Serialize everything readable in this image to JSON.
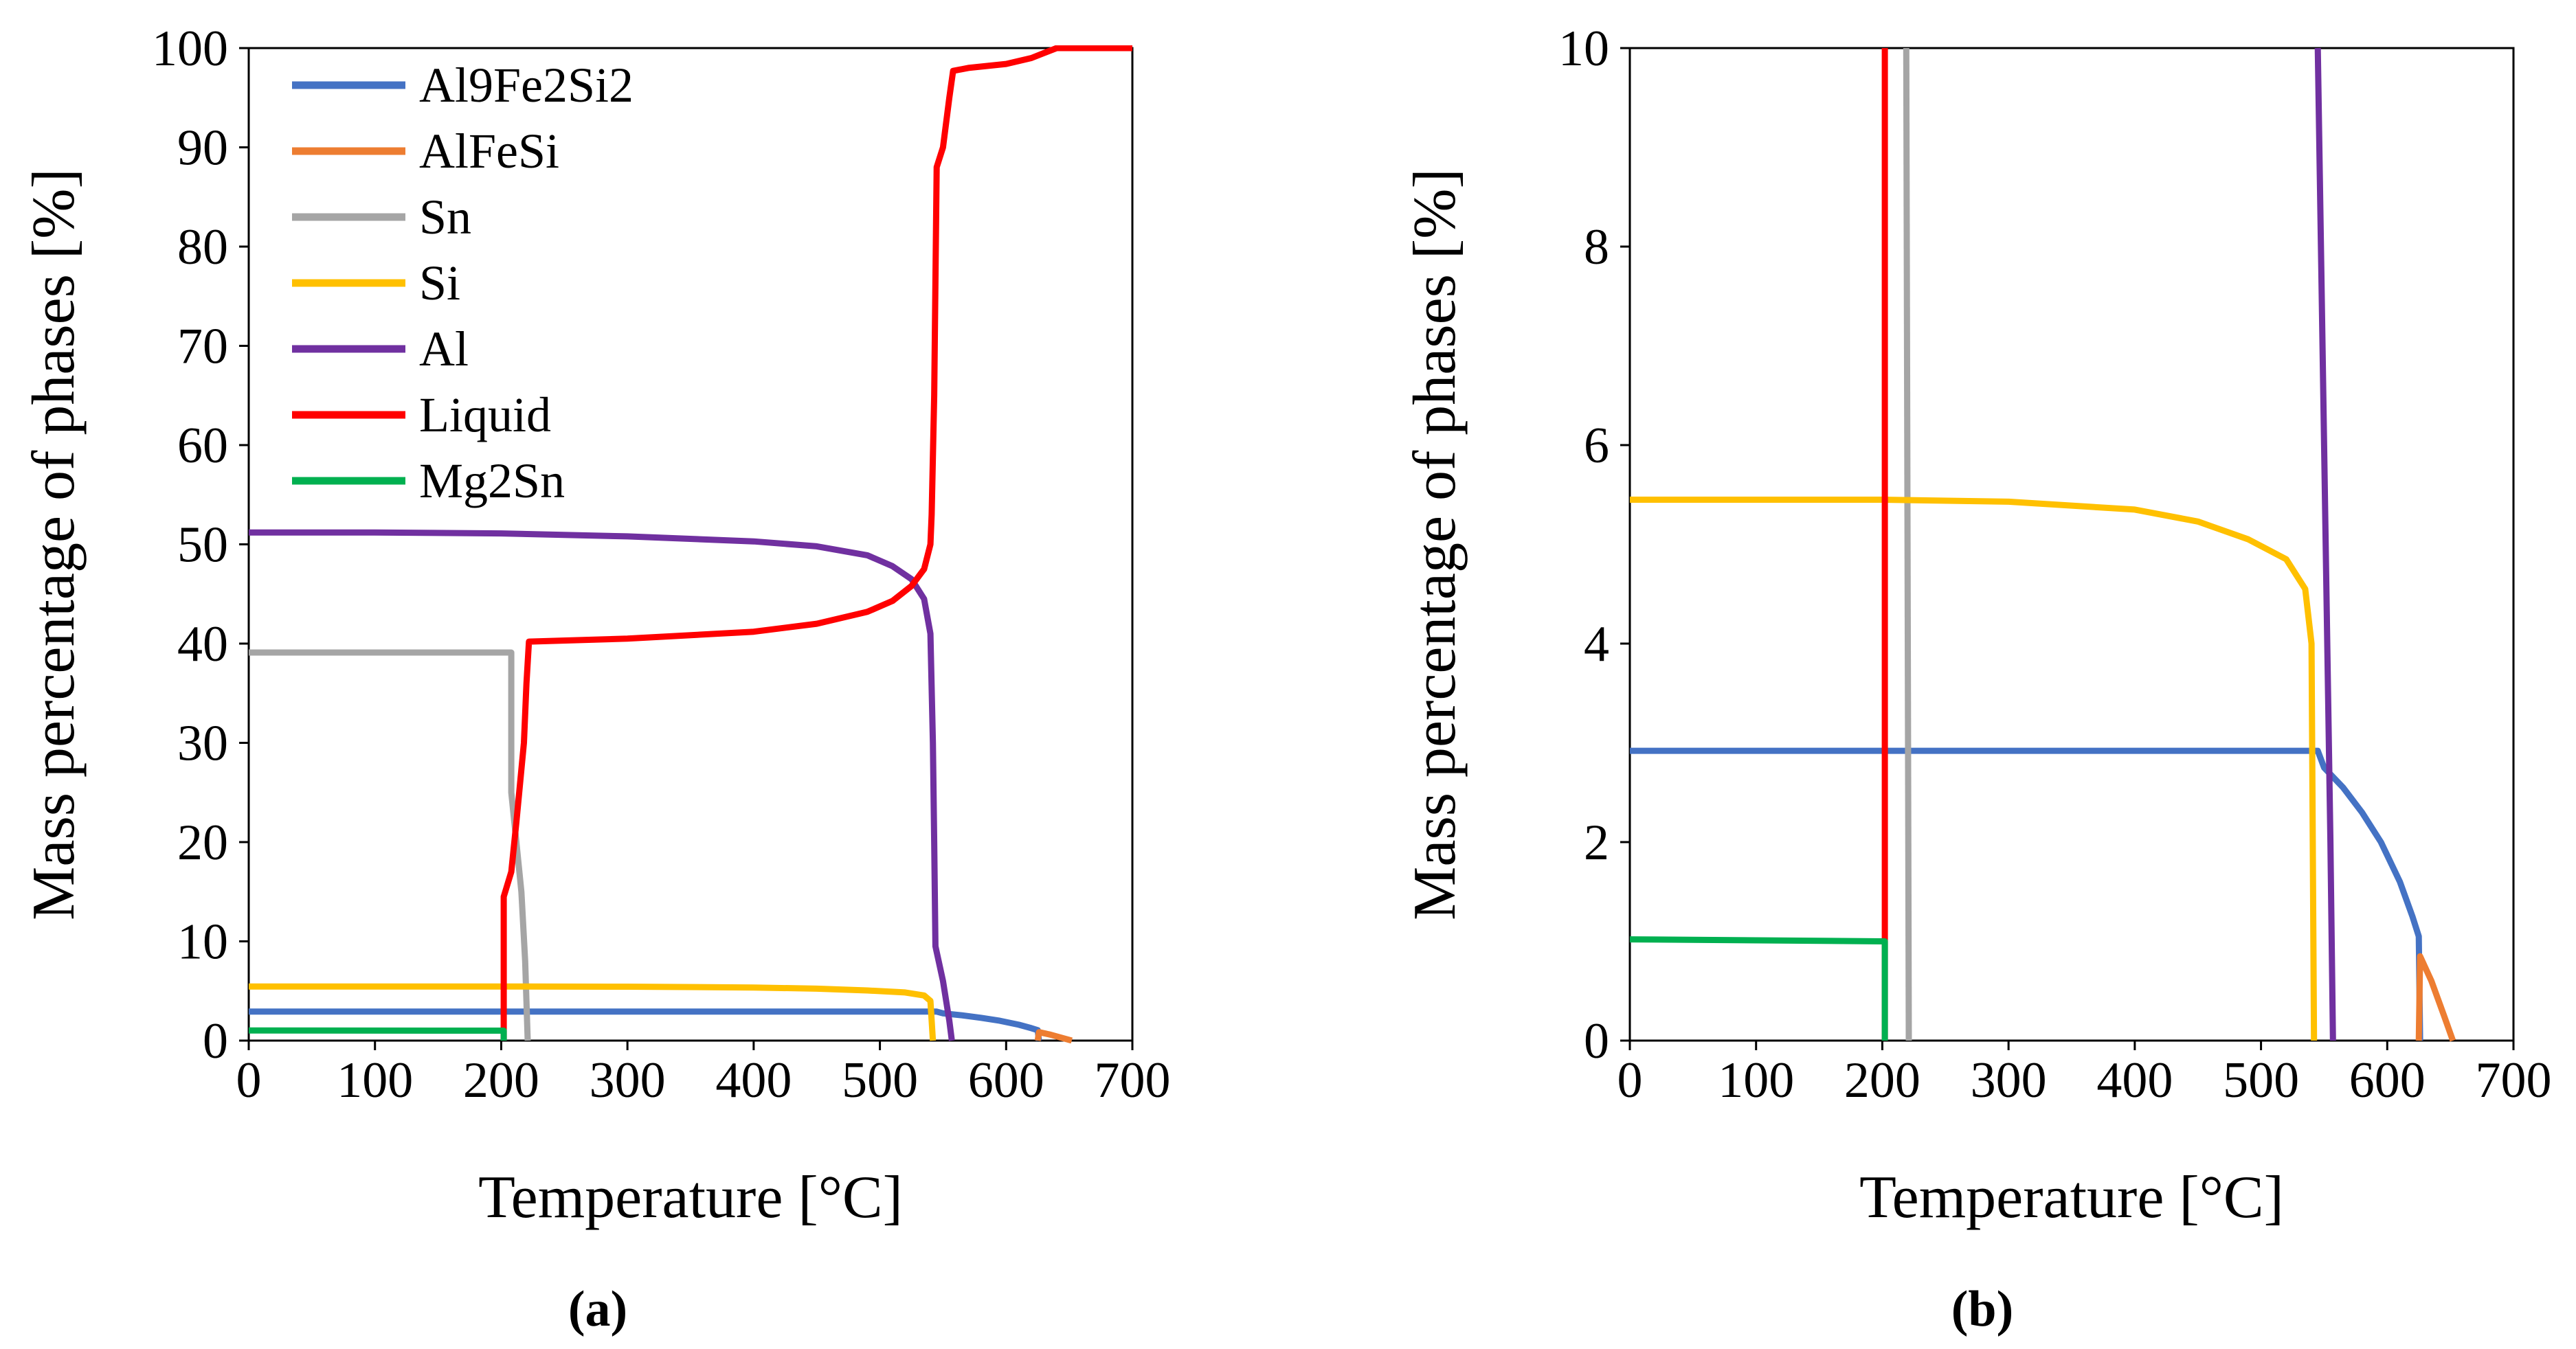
{
  "chart_data": [
    {
      "type": "line",
      "panel_label": "a",
      "panel_caption": "(a)",
      "xlabel": "Temperature [°C]",
      "ylabel": "Mass percentage of phases [%]",
      "xlim": [
        0,
        700
      ],
      "ylim": [
        0,
        100
      ],
      "xticks": [
        0,
        100,
        200,
        300,
        400,
        500,
        600,
        700
      ],
      "yticks": [
        0,
        10,
        20,
        30,
        40,
        50,
        60,
        70,
        80,
        90,
        100
      ],
      "xtick_labels": [
        "0",
        "100",
        "200",
        "300",
        "400",
        "500",
        "600",
        "700"
      ],
      "ytick_labels": [
        "0",
        "10",
        "20",
        "30",
        "40",
        "50",
        "60",
        "70",
        "80",
        "90",
        "100"
      ],
      "grid": false,
      "legend": "top-left",
      "series": [
        {
          "name": "Al9Fe2Si2",
          "color": "#4472C4",
          "points": [
            [
              0,
              2.92
            ],
            [
              500,
              2.92
            ],
            [
              545,
              2.92
            ],
            [
              550,
              2.75
            ],
            [
              565,
              2.55
            ],
            [
              580,
              2.3
            ],
            [
              595,
              2.0
            ],
            [
              610,
              1.6
            ],
            [
              620,
              1.25
            ],
            [
              625,
              1.05
            ],
            [
              626,
              0
            ]
          ]
        },
        {
          "name": "AlFeSi",
          "color": "#ED7D31",
          "points": [
            [
              625,
              0
            ],
            [
              626,
              0.85
            ],
            [
              635,
              0.6
            ],
            [
              645,
              0.25
            ],
            [
              652,
              0
            ]
          ]
        },
        {
          "name": "Sn",
          "color": "#A5A5A5",
          "points": [
            [
              0,
              39.1
            ],
            [
              205,
              39.1
            ],
            [
              208,
              39.1
            ],
            [
              208,
              25
            ],
            [
              212,
              20
            ],
            [
              216,
              15
            ],
            [
              219,
              8
            ],
            [
              221,
              0
            ]
          ]
        },
        {
          "name": "Si",
          "color": "#FFC000",
          "points": [
            [
              0,
              5.45
            ],
            [
              200,
              5.45
            ],
            [
              300,
              5.43
            ],
            [
              400,
              5.35
            ],
            [
              450,
              5.23
            ],
            [
              490,
              5.05
            ],
            [
              520,
              4.85
            ],
            [
              535,
              4.55
            ],
            [
              540,
              4.0
            ],
            [
              541,
              2
            ],
            [
              542,
              0
            ]
          ]
        },
        {
          "name": "Al",
          "color": "#7030A0",
          "points": [
            [
              0,
              51.2
            ],
            [
              100,
              51.2
            ],
            [
              200,
              51.1
            ],
            [
              300,
              50.8
            ],
            [
              400,
              50.3
            ],
            [
              450,
              49.8
            ],
            [
              490,
              48.9
            ],
            [
              510,
              47.8
            ],
            [
              525,
              46.5
            ],
            [
              535,
              44.5
            ],
            [
              540,
              41
            ],
            [
              542,
              30
            ],
            [
              543,
              20
            ],
            [
              544,
              9.5
            ],
            [
              550,
              6
            ],
            [
              555,
              2
            ],
            [
              557,
              0
            ]
          ]
        },
        {
          "name": "Liquid",
          "color": "#FF0000",
          "points": [
            [
              202,
              0
            ],
            [
              202,
              14.5
            ],
            [
              208,
              17
            ],
            [
              212,
              22
            ],
            [
              218,
              30
            ],
            [
              220,
              36
            ],
            [
              222,
              40.2
            ],
            [
              300,
              40.5
            ],
            [
              400,
              41.2
            ],
            [
              450,
              42
            ],
            [
              490,
              43.2
            ],
            [
              510,
              44.3
            ],
            [
              525,
              45.8
            ],
            [
              535,
              47.5
            ],
            [
              540,
              50
            ],
            [
              541,
              53
            ],
            [
              543,
              65
            ],
            [
              545,
              88
            ],
            [
              550,
              90
            ],
            [
              555,
              95
            ],
            [
              558,
              97.7
            ],
            [
              570,
              98
            ],
            [
              600,
              98.4
            ],
            [
              620,
              99
            ],
            [
              630,
              99.5
            ],
            [
              640,
              100
            ],
            [
              700,
              100
            ]
          ]
        },
        {
          "name": "Mg2Sn",
          "color": "#00B050",
          "points": [
            [
              0,
              1.02
            ],
            [
              200,
              1.0
            ],
            [
              202,
              1.0
            ],
            [
              202,
              0
            ]
          ]
        }
      ]
    },
    {
      "type": "line",
      "panel_label": "b",
      "panel_caption": "(b)",
      "xlabel": "Temperature [°C]",
      "ylabel": "Mass percentage of phases [%]",
      "xlim": [
        0,
        700
      ],
      "ylim": [
        0,
        10
      ],
      "xticks": [
        0,
        100,
        200,
        300,
        400,
        500,
        600,
        700
      ],
      "yticks": [
        0,
        2,
        4,
        6,
        8,
        10
      ],
      "xtick_labels": [
        "0",
        "100",
        "200",
        "300",
        "400",
        "500",
        "600",
        "700"
      ],
      "ytick_labels": [
        "0",
        "2",
        "4",
        "6",
        "8",
        "10"
      ],
      "grid": false,
      "legend": "none",
      "series": [
        {
          "name": "Al9Fe2Si2",
          "color": "#4472C4",
          "points": [
            [
              0,
              2.92
            ],
            [
              500,
              2.92
            ],
            [
              545,
              2.92
            ],
            [
              550,
              2.75
            ],
            [
              565,
              2.55
            ],
            [
              580,
              2.3
            ],
            [
              595,
              2.0
            ],
            [
              610,
              1.6
            ],
            [
              620,
              1.25
            ],
            [
              625,
              1.05
            ],
            [
              626,
              0
            ]
          ]
        },
        {
          "name": "AlFeSi",
          "color": "#ED7D31",
          "points": [
            [
              625,
              0
            ],
            [
              626,
              0.85
            ],
            [
              635,
              0.6
            ],
            [
              645,
              0.25
            ],
            [
              652,
              0
            ]
          ]
        },
        {
          "name": "Sn",
          "color": "#A5A5A5",
          "points": [
            [
              219,
              10
            ],
            [
              221,
              0
            ]
          ]
        },
        {
          "name": "Si",
          "color": "#FFC000",
          "points": [
            [
              0,
              5.45
            ],
            [
              200,
              5.45
            ],
            [
              300,
              5.43
            ],
            [
              400,
              5.35
            ],
            [
              450,
              5.23
            ],
            [
              490,
              5.05
            ],
            [
              520,
              4.85
            ],
            [
              535,
              4.55
            ],
            [
              540,
              4.0
            ],
            [
              541,
              2
            ],
            [
              542,
              0
            ]
          ]
        },
        {
          "name": "Al",
          "color": "#7030A0",
          "points": [
            [
              545,
              10
            ],
            [
              550,
              6
            ],
            [
              555,
              2
            ],
            [
              557,
              0
            ]
          ]
        },
        {
          "name": "Liquid",
          "color": "#FF0000",
          "points": [
            [
              202,
              0
            ],
            [
              202,
              10
            ]
          ]
        },
        {
          "name": "Mg2Sn",
          "color": "#00B050",
          "points": [
            [
              0,
              1.02
            ],
            [
              200,
              1.0
            ],
            [
              202,
              1.0
            ],
            [
              202,
              0
            ]
          ]
        }
      ]
    }
  ]
}
